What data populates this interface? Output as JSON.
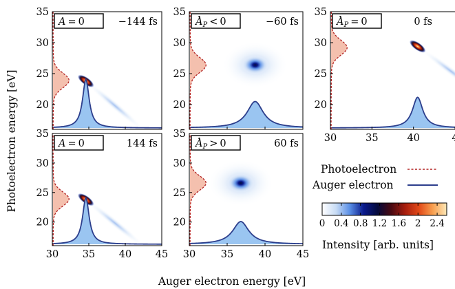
{
  "chart_data": {
    "type": "heatmap",
    "ylabel": "Photoelectron energy [eV]",
    "xlabel": "Auger electron energy [eV]",
    "xlim": [
      30,
      45
    ],
    "ylim": [
      16,
      35
    ],
    "x_ticks": [
      30,
      35,
      40,
      45
    ],
    "x_tick_labels": [
      "30",
      "35",
      "40",
      "45"
    ],
    "x_tick_labels_clipped": [
      "30",
      "35",
      "40",
      "4"
    ],
    "y_ticks": [
      20,
      25,
      30,
      35
    ],
    "y_tick_labels": [
      "20",
      "25",
      "30",
      "35"
    ],
    "colors": {
      "photoelectron": "#b22222",
      "photo_fill": "#f2b5a0",
      "auger": "#2c3e8c",
      "auger_fill": "#8fbff0",
      "colormap": [
        "#ffffff",
        "#c8dcf5",
        "#5a8fe6",
        "#0a1a8c",
        "#050a3c",
        "#4a0a12",
        "#a81e0e",
        "#e24a18",
        "#f8a050",
        "#fde8b8"
      ]
    },
    "panels": [
      {
        "label_lhs": "A",
        "label_op": "=",
        "label_rhs": "0",
        "dot": false,
        "time": "−144 fs",
        "blob": {
          "cx": 34.6,
          "cy": 23.8
        },
        "auger_peak": 34.6,
        "auger_width": 0.55,
        "auger_height": 0.92,
        "photo_peak": 23.9,
        "photo_amp": 1.0
      },
      {
        "label_lhs": "A",
        "label_op": "<",
        "label_rhs": "0",
        "dot": true,
        "time": "−60 fs",
        "blob": {
          "cx": 38.7,
          "cy": 26.4
        },
        "auger_peak": 38.7,
        "auger_width": 1.3,
        "auger_height": 0.5,
        "photo_peak": 26.4,
        "photo_amp": 1.0
      },
      {
        "label_lhs": "A",
        "label_op": "=",
        "label_rhs": "0",
        "dot": true,
        "time": "0 fs",
        "blob": {
          "cx": 40.5,
          "cy": 29.4
        },
        "auger_peak": 40.5,
        "auger_width": 0.75,
        "auger_height": 0.58,
        "photo_peak": 29.2,
        "photo_amp": 1.0
      },
      {
        "label_lhs": "A",
        "label_op": "=",
        "label_rhs": "0",
        "dot": false,
        "time": "144 fs",
        "blob": {
          "cx": 34.6,
          "cy": 23.8
        },
        "auger_peak": 34.6,
        "auger_width": 0.55,
        "auger_height": 0.92,
        "photo_peak": 23.9,
        "photo_amp": 1.0
      },
      {
        "label_lhs": "A",
        "label_op": ">",
        "label_rhs": "0",
        "dot": true,
        "time": "60 fs",
        "blob": {
          "cx": 36.8,
          "cy": 26.6
        },
        "auger_peak": 36.8,
        "auger_width": 1.3,
        "auger_height": 0.45,
        "photo_peak": 26.6,
        "photo_amp": 1.0
      }
    ],
    "subscript": "P",
    "legend": {
      "photoelectron": "Photoelectron",
      "auger": "Auger electron"
    },
    "colorbar": {
      "ticks": [
        0,
        0.4,
        0.8,
        1.2,
        1.6,
        2,
        2.4
      ],
      "tick_labels": [
        "0",
        "0.4",
        "0.8",
        "1.2",
        "1.6",
        "2",
        "2.4"
      ],
      "range": [
        0,
        2.6
      ],
      "label": "Intensity [arb. units]"
    }
  }
}
